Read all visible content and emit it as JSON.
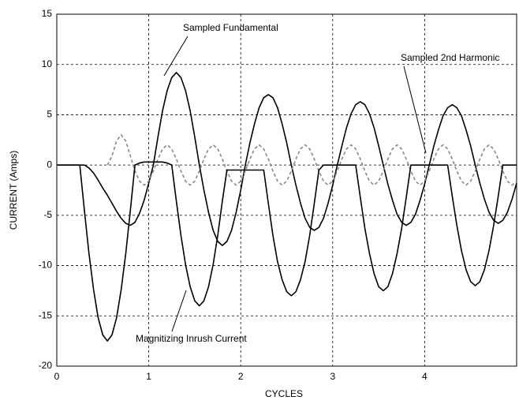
{
  "chart_data": {
    "type": "line",
    "xlabel": "CYCLES",
    "ylabel": "CURRENT (Amps)",
    "xlim": [
      0,
      5
    ],
    "xticks": [
      0,
      1,
      2,
      3,
      4
    ],
    "ylim": [
      -20,
      15
    ],
    "yticks": [
      -20,
      -15,
      -10,
      -5,
      0,
      5,
      10,
      15
    ],
    "grid": true,
    "x": [
      0,
      0.05,
      0.1,
      0.15,
      0.2,
      0.25,
      0.3,
      0.35,
      0.4,
      0.45,
      0.5,
      0.55,
      0.6,
      0.65,
      0.7,
      0.75,
      0.8,
      0.85,
      0.9,
      0.95,
      1,
      1.05,
      1.1,
      1.15,
      1.2,
      1.25,
      1.3,
      1.35,
      1.4,
      1.45,
      1.5,
      1.55,
      1.6,
      1.65,
      1.7,
      1.75,
      1.8,
      1.85,
      1.9,
      1.95,
      2,
      2.05,
      2.1,
      2.15,
      2.2,
      2.25,
      2.3,
      2.35,
      2.4,
      2.45,
      2.5,
      2.55,
      2.6,
      2.65,
      2.7,
      2.75,
      2.8,
      2.85,
      2.9,
      2.95,
      3,
      3.05,
      3.1,
      3.15,
      3.2,
      3.25,
      3.3,
      3.35,
      3.4,
      3.45,
      3.5,
      3.55,
      3.6,
      3.65,
      3.7,
      3.75,
      3.8,
      3.85,
      3.9,
      3.95,
      4,
      4.05,
      4.1,
      4.15,
      4.2,
      4.25,
      4.3,
      4.35,
      4.4,
      4.45,
      4.5,
      4.55,
      4.6,
      4.65,
      4.7,
      4.75,
      4.8,
      4.85,
      4.9,
      4.95,
      5
    ],
    "series": [
      {
        "name": "Sampled Fundamental",
        "color": "#000000",
        "style": "solid",
        "values": [
          0,
          0,
          0,
          0,
          0,
          0,
          0,
          -0.3,
          -0.8,
          -1.5,
          -2.3,
          -3,
          -3.8,
          -4.6,
          -5.3,
          -5.8,
          -6,
          -5.7,
          -4.8,
          -3.5,
          -1.8,
          0,
          2.8,
          5.4,
          7.4,
          8.7,
          9.2,
          8.7,
          7.4,
          5.4,
          2.8,
          0,
          -2.5,
          -4.7,
          -6.5,
          -7.6,
          -8,
          -7.6,
          -6.5,
          -4.7,
          -2.5,
          0,
          2.2,
          4.1,
          5.7,
          6.7,
          7,
          6.7,
          5.7,
          4.1,
          2.2,
          0,
          -2,
          -3.8,
          -5.3,
          -6.2,
          -6.5,
          -6.2,
          -5.3,
          -3.8,
          -2,
          0,
          1.9,
          3.7,
          5.1,
          6,
          6.3,
          6,
          5.1,
          3.7,
          1.9,
          0,
          -1.9,
          -3.5,
          -4.9,
          -5.7,
          -6,
          -5.7,
          -4.9,
          -3.5,
          -1.9,
          0,
          1.9,
          3.5,
          4.9,
          5.7,
          6,
          5.7,
          4.9,
          3.5,
          1.9,
          0,
          -1.8,
          -3.4,
          -4.7,
          -5.5,
          -5.8,
          -5.5,
          -4.7,
          -3.4,
          -1.8
        ]
      },
      {
        "name": "Sampled 2nd Harmonic",
        "color": "#888888",
        "style": "dashed",
        "values": [
          null,
          null,
          null,
          null,
          null,
          null,
          null,
          null,
          null,
          null,
          null,
          0,
          0.9,
          2.4,
          3,
          2.4,
          0.9,
          -0.6,
          -1.6,
          -2,
          -1.6,
          -0.6,
          0.6,
          1.6,
          2,
          1.6,
          0.6,
          -0.6,
          -1.6,
          -2,
          -1.6,
          -0.6,
          0.6,
          1.6,
          2,
          1.6,
          0.6,
          -0.6,
          -1.6,
          -2,
          -1.6,
          -0.6,
          0.6,
          1.6,
          2,
          1.6,
          0.6,
          -0.6,
          -1.6,
          -2,
          -1.6,
          -0.6,
          0.6,
          1.6,
          2,
          1.6,
          0.6,
          -0.6,
          -1.6,
          -2,
          -1.6,
          -0.6,
          0.6,
          1.6,
          2,
          1.6,
          0.6,
          -0.6,
          -1.6,
          -2,
          -1.6,
          -0.6,
          0.6,
          1.6,
          2,
          1.6,
          0.6,
          -0.6,
          -1.6,
          -2,
          -1.6,
          -0.6,
          0.6,
          1.6,
          2,
          1.6,
          0.6,
          -0.6,
          -1.6,
          -2,
          -1.6,
          -0.6,
          0.6,
          1.6,
          2,
          1.6,
          0.6,
          -0.6,
          -1.6,
          -2,
          -1.6
        ]
      },
      {
        "name": "Magnitizing Inrush Current",
        "color": "#000000",
        "style": "solid",
        "values": [
          0,
          0,
          0,
          0,
          0,
          0,
          -4.5,
          -8.8,
          -12.4,
          -15.2,
          -16.9,
          -17.5,
          -16.9,
          -15.2,
          -12.4,
          -8.8,
          -4.5,
          0,
          0.2,
          0.3,
          0.3,
          0.3,
          0.3,
          0.3,
          0.2,
          0,
          -3.6,
          -7,
          -9.9,
          -12.1,
          -13.5,
          -14,
          -13.5,
          -12.1,
          -9.9,
          -7,
          -3.6,
          -0.5,
          -0.5,
          -0.5,
          -0.5,
          -0.5,
          -0.5,
          -0.5,
          -0.5,
          -0.5,
          -3.8,
          -7,
          -9.6,
          -11.4,
          -12.6,
          -13,
          -12.6,
          -11.4,
          -9.6,
          -7,
          -3.8,
          -0.5,
          0,
          0,
          0,
          0,
          0,
          0,
          0,
          0,
          -3.2,
          -6.3,
          -8.8,
          -10.8,
          -12.1,
          -12.5,
          -12.1,
          -10.8,
          -8.8,
          -6.3,
          -3.2,
          0,
          0,
          0,
          0,
          0,
          0,
          0,
          0,
          0,
          -3.1,
          -6,
          -8.5,
          -10.4,
          -11.6,
          -12,
          -11.6,
          -10.4,
          -8.5,
          -6,
          -3.1,
          0,
          0,
          0,
          0
        ]
      }
    ]
  }
}
